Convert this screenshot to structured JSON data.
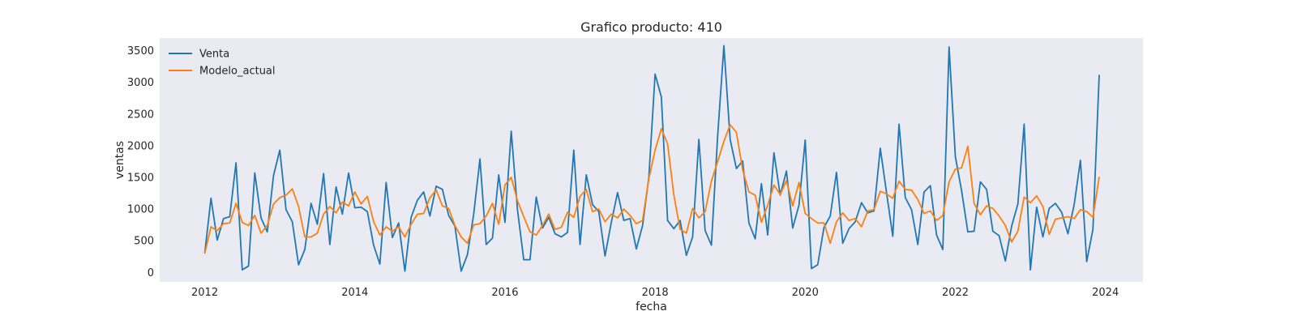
{
  "chart_data": {
    "type": "line",
    "title": "Grafico producto: 410",
    "xlabel": "fecha",
    "ylabel": "ventas",
    "xlim": [
      2011.4,
      2024.5
    ],
    "ylim": [
      -150,
      3700
    ],
    "x_ticks": [
      2012,
      2014,
      2016,
      2018,
      2020,
      2022,
      2024
    ],
    "y_ticks": [
      0,
      500,
      1000,
      1500,
      2000,
      2500,
      3000,
      3500
    ],
    "grid": false,
    "background": "#eaeaf2",
    "legend": {
      "placement": "top-left",
      "entries": [
        "Venta",
        "Modelo_actual"
      ]
    },
    "x_start": 2012.0,
    "x_step": 0.0833333,
    "series": [
      {
        "name": "Venta",
        "color": "#1f77b4",
        "values": [
          300,
          1170,
          510,
          850,
          880,
          1730,
          40,
          100,
          1570,
          860,
          640,
          1530,
          1930,
          990,
          800,
          120,
          360,
          1090,
          760,
          1560,
          440,
          1350,
          920,
          1570,
          1020,
          1030,
          960,
          430,
          130,
          1420,
          550,
          780,
          20,
          870,
          1140,
          1270,
          890,
          1360,
          1310,
          900,
          730,
          20,
          280,
          920,
          1790,
          440,
          540,
          1540,
          790,
          2230,
          990,
          200,
          200,
          1190,
          700,
          870,
          610,
          560,
          630,
          1930,
          440,
          1540,
          1070,
          960,
          260,
          790,
          1260,
          820,
          850,
          370,
          740,
          1500,
          3130,
          2770,
          820,
          690,
          820,
          270,
          560,
          2100,
          660,
          430,
          2150,
          3580,
          2100,
          1640,
          1760,
          780,
          530,
          1400,
          590,
          1890,
          1220,
          1600,
          700,
          1060,
          2090,
          60,
          120,
          710,
          890,
          1580,
          460,
          690,
          800,
          1100,
          940,
          970,
          1960,
          1260,
          570,
          2340,
          1180,
          990,
          440,
          1270,
          1370,
          590,
          360,
          3560,
          1830,
          1290,
          640,
          650,
          1430,
          1310,
          650,
          580,
          180,
          730,
          1080,
          2340,
          40,
          1030,
          560,
          1010,
          1090,
          950,
          610,
          1070,
          1770,
          170,
          680,
          3120
        ]
      },
      {
        "name": "Modelo_actual",
        "color": "#ff7f0e",
        "values": [
          300,
          720,
          660,
          770,
          780,
          1090,
          790,
          740,
          900,
          620,
          740,
          1080,
          1180,
          1220,
          1320,
          1040,
          560,
          560,
          620,
          920,
          1040,
          940,
          1110,
          1050,
          1270,
          1080,
          1200,
          800,
          590,
          720,
          650,
          720,
          560,
          760,
          920,
          930,
          1180,
          1300,
          1050,
          1010,
          740,
          560,
          460,
          750,
          770,
          890,
          1090,
          760,
          1380,
          1500,
          1130,
          880,
          640,
          590,
          740,
          920,
          680,
          710,
          950,
          870,
          1200,
          1310,
          960,
          1000,
          800,
          920,
          860,
          1000,
          900,
          770,
          820,
          1480,
          1930,
          2270,
          2030,
          1220,
          680,
          620,
          1010,
          860,
          960,
          1440,
          1750,
          2070,
          2330,
          2210,
          1620,
          1270,
          1220,
          790,
          1060,
          1380,
          1230,
          1450,
          1050,
          1420,
          930,
          850,
          780,
          780,
          460,
          800,
          940,
          820,
          850,
          720,
          970,
          990,
          1280,
          1240,
          1170,
          1440,
          1310,
          1300,
          1150,
          930,
          970,
          820,
          900,
          1430,
          1630,
          1650,
          1990,
          1090,
          910,
          1050,
          1010,
          890,
          740,
          480,
          650,
          1190,
          1100,
          1210,
          1040,
          600,
          840,
          860,
          880,
          850,
          990,
          960,
          870,
          1510
        ]
      }
    ]
  }
}
